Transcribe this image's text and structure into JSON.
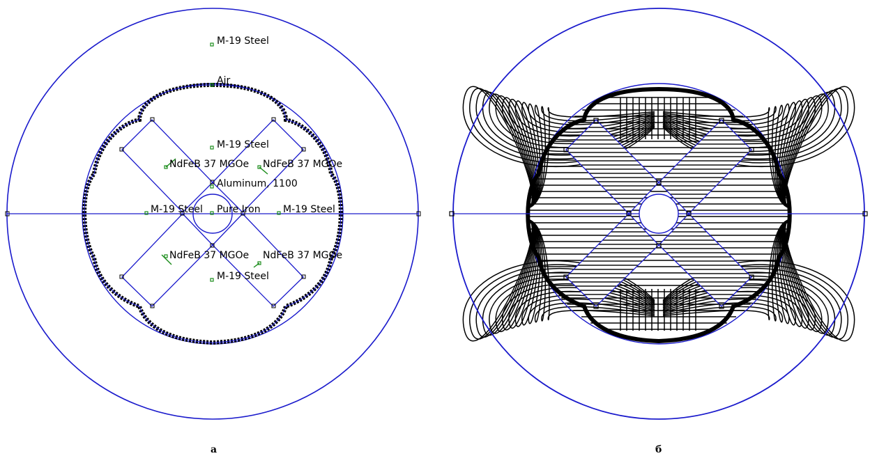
{
  "panel_a": {
    "caption": "а",
    "labels": {
      "steel_outer": "M-19 Steel",
      "air": "Air",
      "steel_top": "M-19 Steel",
      "magnet_ul": "NdFeB 37 MGOe",
      "magnet_ur": "NdFeB 37 MGOe",
      "aluminum": "Aluminum, 1100",
      "steel_left": "M-19 Steel",
      "pure_iron": "Pure Iron",
      "steel_right": "M-19 Steel",
      "magnet_ll": "NdFeB 37 MGOe",
      "magnet_lr": "NdFeB 37 MGOe",
      "steel_bottom": "M-19 Steel"
    }
  },
  "panel_b": {
    "caption": "б"
  },
  "colors": {
    "geometry": "#1a1acc",
    "flux_lines": "#000000",
    "block_marker": "#1a8c1a"
  }
}
